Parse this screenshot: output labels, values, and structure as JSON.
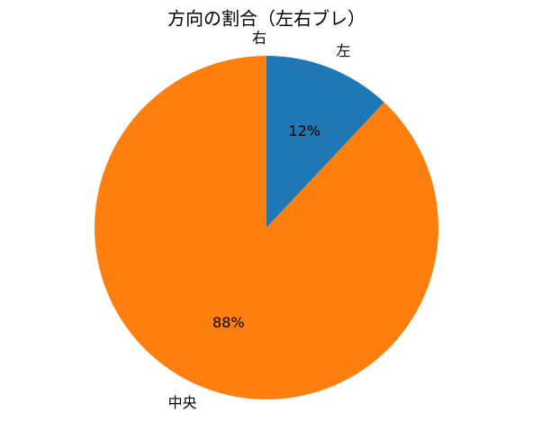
{
  "chart_data": {
    "type": "pie",
    "title": "方向の割合（左右ブレ）",
    "categories": [
      "左",
      "中央",
      "右"
    ],
    "values": [
      12,
      88,
      0
    ],
    "value_labels": [
      "12%",
      "88%",
      null
    ],
    "colors": [
      "#1f77b4",
      "#ff7f0e",
      "#2ca02c"
    ]
  }
}
